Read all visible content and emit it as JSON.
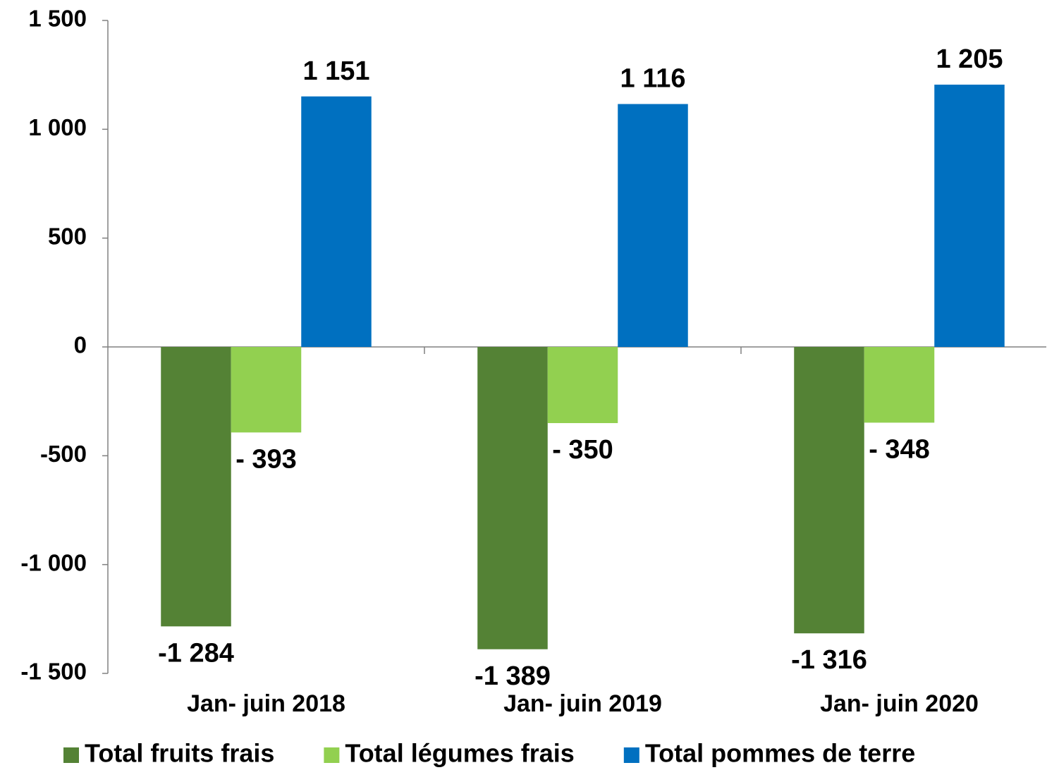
{
  "chart_data": {
    "type": "bar",
    "categories": [
      "Jan- juin 2018",
      "Jan- juin 2019",
      "Jan- juin 2020"
    ],
    "series": [
      {
        "name": "Total fruits frais",
        "color": "#548235",
        "values": [
          -1284,
          -1389,
          -1316
        ],
        "value_labels": [
          "-1 284",
          "-1 389",
          "-1 316"
        ]
      },
      {
        "name": "Total légumes frais",
        "color": "#92d050",
        "values": [
          -393,
          -350,
          -348
        ],
        "value_labels": [
          "- 393",
          "- 350",
          "- 348"
        ]
      },
      {
        "name": "Total pommes de terre",
        "color": "#0070c0",
        "values": [
          1151,
          1116,
          1205
        ],
        "value_labels": [
          "1 151",
          "1 116",
          "1 205"
        ]
      }
    ],
    "ylim": [
      -1500,
      1500
    ],
    "yticks": [
      {
        "value": -1500,
        "label": "-1 500"
      },
      {
        "value": -1000,
        "label": "-1 000"
      },
      -500,
      0,
      500,
      {
        "value": 1000,
        "label": "1 000"
      },
      {
        "value": 1500,
        "label": "1 500"
      }
    ],
    "legend": "bottom"
  }
}
